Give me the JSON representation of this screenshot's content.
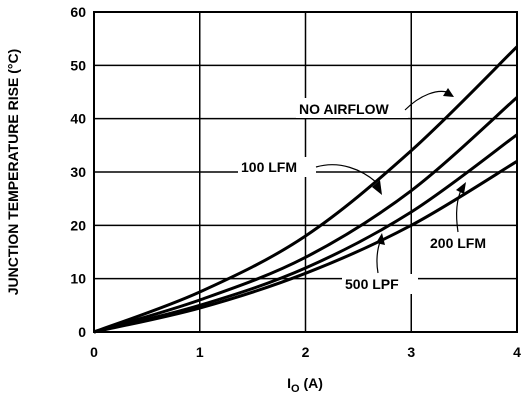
{
  "chart_data": {
    "type": "line",
    "xlabel_main": "I",
    "xlabel_sub": "O",
    "xlabel_unit": " (A)",
    "ylabel": "JUNCTION TEMPERATURE RISE (°C)",
    "xlim": [
      0,
      4
    ],
    "ylim": [
      0,
      60
    ],
    "grid": true,
    "x_ticks": [
      "0",
      "1",
      "2",
      "3",
      "4"
    ],
    "y_ticks": [
      "0",
      "10",
      "20",
      "30",
      "40",
      "50",
      "60"
    ],
    "series": [
      {
        "name": "NO AIRFLOW",
        "x": [
          0,
          1,
          2,
          3,
          4
        ],
        "y": [
          0,
          7.5,
          18,
          34,
          53.5
        ]
      },
      {
        "name": "100 LFM",
        "x": [
          0,
          1,
          2,
          3,
          4
        ],
        "y": [
          0,
          6,
          14,
          26.5,
          44
        ]
      },
      {
        "name": "200 LFM",
        "x": [
          0,
          1,
          2,
          3,
          4
        ],
        "y": [
          0,
          5,
          12,
          22.5,
          37
        ]
      },
      {
        "name": "500 LPF",
        "x": [
          0,
          1,
          2,
          3,
          4
        ],
        "y": [
          0,
          4.5,
          11,
          20,
          32
        ]
      }
    ],
    "annotations": [
      "NO AIRFLOW",
      "100 LFM",
      "200 LFM",
      "500 LPF"
    ]
  }
}
